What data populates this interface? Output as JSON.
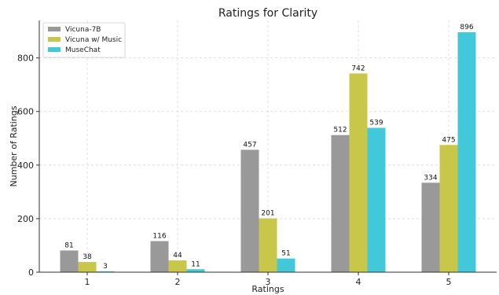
{
  "chart_data": {
    "type": "bar",
    "title": "Ratings for Clarity",
    "xlabel": "Ratings",
    "ylabel": "Number of Ratings",
    "categories": [
      "1",
      "2",
      "3",
      "4",
      "5"
    ],
    "series": [
      {
        "name": "Vicuna-7B",
        "color": "#999999",
        "values": [
          81,
          116,
          457,
          512,
          334
        ]
      },
      {
        "name": "Vicuna w/ Music",
        "color": "#c8c74a",
        "values": [
          38,
          44,
          201,
          742,
          475
        ]
      },
      {
        "name": "MuseChat",
        "color": "#42c8d8",
        "values": [
          3,
          11,
          51,
          539,
          896
        ]
      }
    ],
    "ylim": [
      0,
      940
    ],
    "yticks": [
      0,
      200,
      400,
      600,
      800
    ],
    "grid": true,
    "legend_position": "top-left"
  }
}
